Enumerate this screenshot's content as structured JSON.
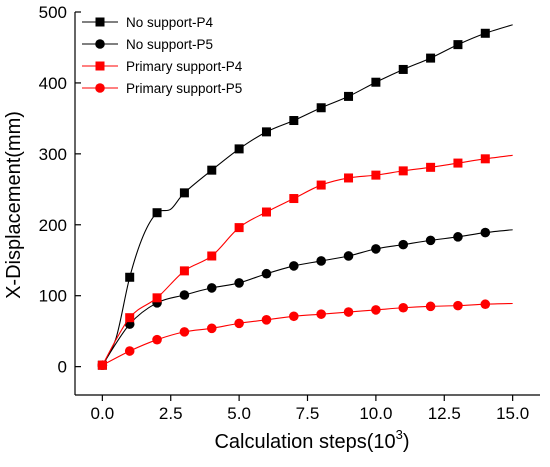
{
  "chart_data": {
    "type": "line",
    "xlabel": "Calculation steps(10",
    "xlabel_sup": "3",
    "xlabel_end": ")",
    "ylabel": "X-Displacement(mm)",
    "xlim": [
      -1.0,
      16.0
    ],
    "ylim": [
      -40,
      500
    ],
    "x_ticks": [
      0.0,
      2.5,
      5.0,
      7.5,
      10.0,
      12.5,
      15.0
    ],
    "x_tick_labels": [
      "0.0",
      "2.5",
      "5.0",
      "7.5",
      "10.0",
      "12.5",
      "15.0"
    ],
    "y_ticks": [
      0,
      100,
      200,
      300,
      400,
      500
    ],
    "y_tick_labels": [
      "0",
      "100",
      "200",
      "300",
      "400",
      "500"
    ],
    "legend_position": "top-left",
    "series": [
      {
        "name": "No support-P4",
        "color": "#000000",
        "marker": "square",
        "x": [
          0,
          1,
          2,
          3,
          4,
          5,
          6,
          7,
          8,
          9,
          10,
          11,
          12,
          13,
          14
        ],
        "y": [
          2,
          126,
          217,
          245,
          277,
          307,
          331,
          347,
          365,
          381,
          401,
          419,
          435,
          454,
          470
        ],
        "curve": [
          [
            0,
            2
          ],
          [
            0.5,
            40
          ],
          [
            1,
            126
          ],
          [
            1.5,
            185
          ],
          [
            2,
            217
          ],
          [
            2.5,
            222
          ],
          [
            3,
            245
          ],
          [
            4,
            277
          ],
          [
            5,
            307
          ],
          [
            6,
            331
          ],
          [
            7,
            347
          ],
          [
            8,
            365
          ],
          [
            9,
            381
          ],
          [
            10,
            401
          ],
          [
            11,
            419
          ],
          [
            12,
            435
          ],
          [
            13,
            454
          ],
          [
            14,
            470
          ],
          [
            15,
            482
          ]
        ]
      },
      {
        "name": "No support-P5",
        "color": "#000000",
        "marker": "circle",
        "x": [
          0,
          1,
          2,
          3,
          4,
          5,
          6,
          7,
          8,
          9,
          10,
          11,
          12,
          13,
          14
        ],
        "y": [
          2,
          60,
          90,
          101,
          111,
          118,
          131,
          142,
          149,
          156,
          166,
          172,
          178,
          183,
          189
        ],
        "curve": [
          [
            0,
            2
          ],
          [
            1,
            60
          ],
          [
            2,
            90
          ],
          [
            3,
            101
          ],
          [
            4,
            111
          ],
          [
            5,
            118
          ],
          [
            6,
            131
          ],
          [
            7,
            142
          ],
          [
            8,
            149
          ],
          [
            9,
            156
          ],
          [
            10,
            166
          ],
          [
            11,
            172
          ],
          [
            12,
            178
          ],
          [
            13,
            183
          ],
          [
            14,
            189
          ],
          [
            15,
            193
          ]
        ]
      },
      {
        "name": "Primary support-P4",
        "color": "#ff0000",
        "marker": "square",
        "x": [
          0,
          1,
          2,
          3,
          4,
          5,
          6,
          7,
          8,
          9,
          10,
          11,
          12,
          13,
          14
        ],
        "y": [
          2,
          69,
          97,
          135,
          156,
          196,
          218,
          237,
          256,
          266,
          270,
          276,
          281,
          287,
          293
        ],
        "curve": [
          [
            0,
            2
          ],
          [
            1,
            69
          ],
          [
            2,
            97
          ],
          [
            3,
            135
          ],
          [
            4,
            156
          ],
          [
            5,
            196
          ],
          [
            6,
            218
          ],
          [
            7,
            237
          ],
          [
            8,
            256
          ],
          [
            9,
            266
          ],
          [
            10,
            270
          ],
          [
            11,
            276
          ],
          [
            12,
            281
          ],
          [
            13,
            287
          ],
          [
            14,
            293
          ],
          [
            15,
            298
          ]
        ]
      },
      {
        "name": "Primary support-P5",
        "color": "#ff0000",
        "marker": "circle",
        "x": [
          0,
          1,
          2,
          3,
          4,
          5,
          6,
          7,
          8,
          9,
          10,
          11,
          12,
          13,
          14
        ],
        "y": [
          2,
          22,
          38,
          49,
          54,
          61,
          66,
          71,
          74,
          77,
          80,
          83,
          85,
          86,
          88
        ],
        "curve": [
          [
            0,
            2
          ],
          [
            1,
            22
          ],
          [
            2,
            38
          ],
          [
            3,
            49
          ],
          [
            4,
            54
          ],
          [
            5,
            61
          ],
          [
            6,
            66
          ],
          [
            7,
            71
          ],
          [
            8,
            74
          ],
          [
            9,
            77
          ],
          [
            10,
            80
          ],
          [
            11,
            83
          ],
          [
            12,
            85
          ],
          [
            13,
            86
          ],
          [
            14,
            88
          ],
          [
            15,
            89
          ]
        ]
      }
    ]
  }
}
